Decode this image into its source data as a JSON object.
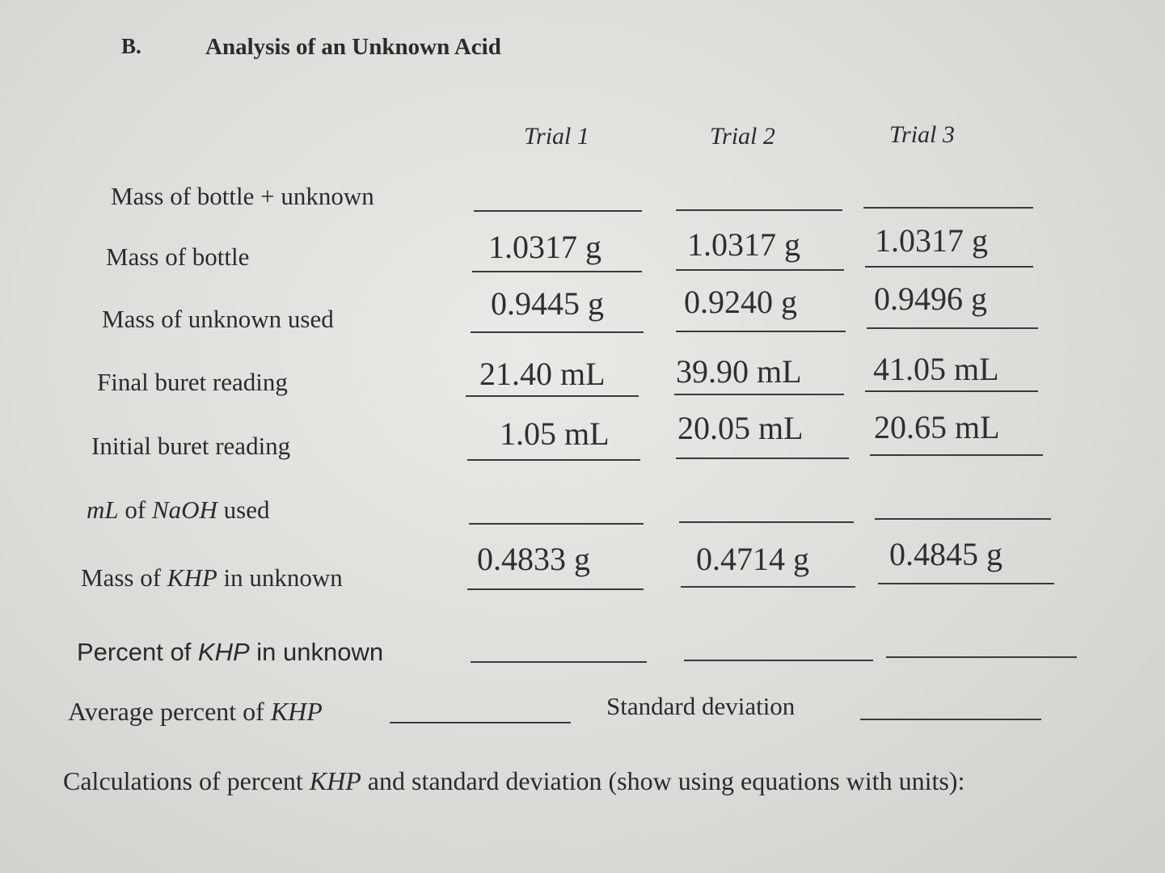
{
  "section": {
    "letter": "B.",
    "title": "Analysis of an Unknown Acid"
  },
  "trials": [
    "Trial 1",
    "Trial 2",
    "Trial 3"
  ],
  "rows": {
    "mass_bottle_unknown": {
      "label": "Mass of bottle + unknown"
    },
    "mass_bottle": {
      "label": "Mass of bottle",
      "values": [
        "1.0317 g",
        "1.0317 g",
        "1.0317 g"
      ]
    },
    "mass_unknown_used": {
      "label": "Mass of unknown used",
      "values": [
        "0.9445 g",
        "0.9240 g",
        "0.9496 g"
      ]
    },
    "final_buret": {
      "label": "Final buret reading",
      "values": [
        "21.40 mL",
        "39.90  mL",
        "41.05 mL"
      ]
    },
    "initial_buret": {
      "label": "Initial buret reading",
      "values": [
        "1.05 mL",
        "20.05  mL",
        "20.65 mL"
      ]
    },
    "ml_naoh": {
      "label_sym": "mL",
      "label_mid": " of ",
      "label_sym2": "NaOH",
      "label_end": " used"
    },
    "mass_khp": {
      "label_start": "Mass of ",
      "label_sym": "KHP",
      "label_end": " in unknown",
      "values": [
        "0.4833 g",
        "0.4714 g",
        "0.4845 g"
      ]
    },
    "percent_khp": {
      "label_start": "Percent of ",
      "label_sym": "KHP",
      "label_end": " in unknown"
    }
  },
  "average": {
    "label_start": "Average percent of ",
    "label_sym": "KHP"
  },
  "std_dev": {
    "label": "Standard deviation"
  },
  "calculations": {
    "label_start": "Calculations of percent ",
    "label_sym": "KHP",
    "label_end": " and standard deviation (show using equations with units):"
  }
}
